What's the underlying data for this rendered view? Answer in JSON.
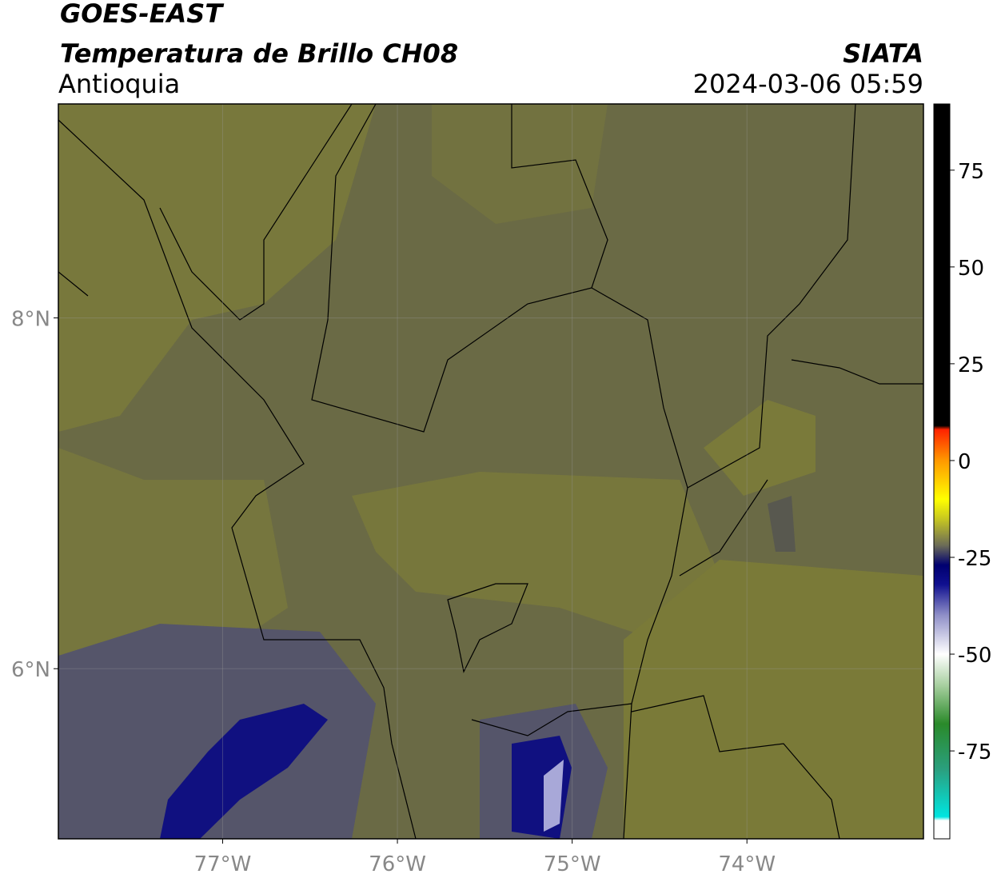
{
  "header": {
    "satellite": "GOES-EAST",
    "product": "Temperatura de Brillo CH08",
    "region": "Antioquia",
    "agency": "SIATA",
    "datetime": "2024-03-06 05:59"
  },
  "map": {
    "lon_range": [
      -77.94,
      -72.99
    ],
    "lat_range": [
      5.03,
      9.22
    ],
    "lat_ticks": [
      {
        "value": 8,
        "label": "8°N"
      },
      {
        "value": 6,
        "label": "6°N"
      }
    ],
    "lon_ticks": [
      {
        "value": -77,
        "label": "77°W"
      },
      {
        "value": -76,
        "label": "76°W"
      },
      {
        "value": -75,
        "label": "75°W"
      },
      {
        "value": -74,
        "label": "74°W"
      }
    ]
  },
  "colorbar": {
    "range": [
      -97.7,
      92.1
    ],
    "ticks": [
      75,
      50,
      25,
      0,
      -25,
      -50,
      -75
    ],
    "stops": [
      {
        "value": -97.7,
        "color": "#ffffff"
      },
      {
        "value": -93,
        "color": "#ffffff"
      },
      {
        "value": -92,
        "color": "#00e5e0"
      },
      {
        "value": -80,
        "color": "#2aa080"
      },
      {
        "value": -68,
        "color": "#2a8a2a"
      },
      {
        "value": -58,
        "color": "#a8d0a0"
      },
      {
        "value": -50,
        "color": "#ffffff"
      },
      {
        "value": -40,
        "color": "#9090c8"
      },
      {
        "value": -32,
        "color": "#101090"
      },
      {
        "value": -27,
        "color": "#000070"
      },
      {
        "value": -22,
        "color": "#6a6a58"
      },
      {
        "value": -15,
        "color": "#c8c820"
      },
      {
        "value": -10,
        "color": "#ffff00"
      },
      {
        "value": 0,
        "color": "#ff9900"
      },
      {
        "value": 8,
        "color": "#ff2200"
      },
      {
        "value": 9,
        "color": "#000000"
      },
      {
        "value": 92.1,
        "color": "#000000"
      }
    ]
  }
}
